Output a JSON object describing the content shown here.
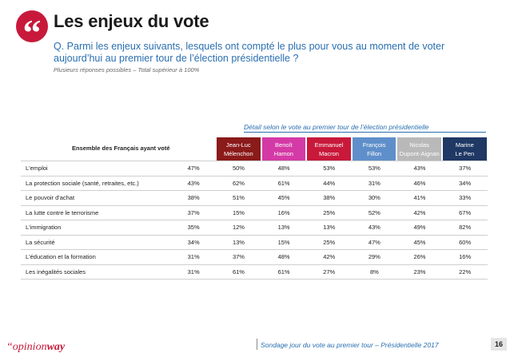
{
  "header": {
    "quote_glyph": "“",
    "title": "Les enjeux du vote",
    "question": "Q. Parmi les enjeux suivants, lesquels ont compté le plus pour vous au moment de voter aujourd’hui au premier tour de l’élection présidentielle ?",
    "note": "Plusieurs réponses possibles – Total supérieur à 100%"
  },
  "table": {
    "detail_caption": "Détail selon le vote au premier tour de l’élection présidentielle",
    "total_header": "Ensemble des Français ayant voté",
    "candidates": [
      {
        "line1": "Jean-Luc",
        "line2": "Mélenchon",
        "color": "#8b1a1a"
      },
      {
        "line1": "Benoît",
        "line2": "Hamon",
        "color": "#d43aa6"
      },
      {
        "line1": "Emmanuel",
        "line2": "Macron",
        "color": "#c8193b"
      },
      {
        "line1": "François",
        "line2": "Fillon",
        "color": "#5f8fca"
      },
      {
        "line1": "Nicolas",
        "line2": "Dupont-Aignan",
        "color": "#b9b9b9"
      },
      {
        "line1": "Marine",
        "line2": "Le Pen",
        "color": "#1f3864"
      }
    ],
    "rows": [
      {
        "label": "L'emploi",
        "total": "47%",
        "values": [
          "50%",
          "48%",
          "53%",
          "53%",
          "43%",
          "37%"
        ]
      },
      {
        "label": "La protection sociale (santé, retraites, etc.)",
        "total": "43%",
        "values": [
          "62%",
          "61%",
          "44%",
          "31%",
          "46%",
          "34%"
        ]
      },
      {
        "label": "Le pouvoir d'achat",
        "total": "38%",
        "values": [
          "51%",
          "45%",
          "38%",
          "30%",
          "41%",
          "33%"
        ]
      },
      {
        "label": "La lutte contre le terrorisme",
        "total": "37%",
        "values": [
          "15%",
          "16%",
          "25%",
          "52%",
          "42%",
          "67%"
        ]
      },
      {
        "label": "L'immigration",
        "total": "35%",
        "values": [
          "12%",
          "13%",
          "13%",
          "43%",
          "49%",
          "82%"
        ]
      },
      {
        "label": "La sécurité",
        "total": "34%",
        "values": [
          "13%",
          "15%",
          "25%",
          "47%",
          "45%",
          "60%"
        ]
      },
      {
        "label": "L'éducation et la formation",
        "total": "31%",
        "values": [
          "37%",
          "48%",
          "42%",
          "29%",
          "26%",
          "16%"
        ]
      },
      {
        "label": "Les inégalités sociales",
        "total": "31%",
        "values": [
          "61%",
          "61%",
          "27%",
          "8%",
          "23%",
          "22%"
        ]
      }
    ]
  },
  "footer": {
    "logo_prefix": "“opinion",
    "logo_suffix": "way",
    "text": "Sondage jour du vote au premier tour – Présidentielle 2017",
    "page": "16"
  }
}
